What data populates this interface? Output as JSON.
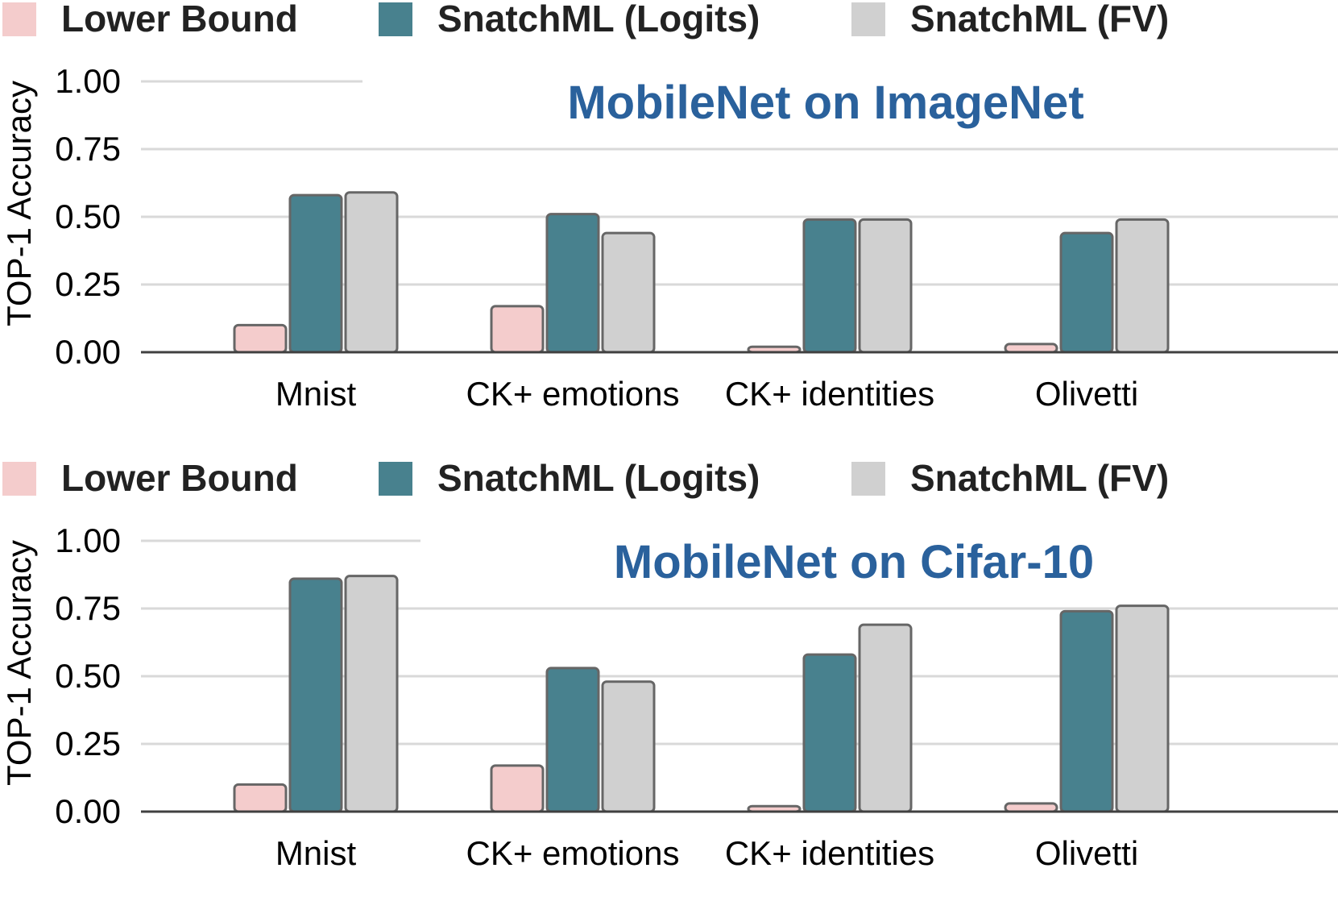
{
  "chart_data": [
    {
      "type": "bar",
      "title": "MobileNet on ImageNet",
      "xlabel": "",
      "ylabel": "TOP-1 Accuracy",
      "ylim": [
        0,
        1
      ],
      "yticks": [
        "0.00",
        "0.25",
        "0.50",
        "0.75",
        "1.00"
      ],
      "grid": true,
      "legend_position": "top",
      "categories": [
        "Mnist",
        "CK+ emotions",
        "CK+ identities",
        "Olivetti"
      ],
      "series": [
        {
          "name": "Lower Bound",
          "color": "#f4cccc",
          "values": [
            0.1,
            0.17,
            0.02,
            0.03
          ]
        },
        {
          "name": "SnatchML (Logits)",
          "color": "#48818e",
          "values": [
            0.58,
            0.51,
            0.49,
            0.44
          ]
        },
        {
          "name": "SnatchML (FV)",
          "color": "#d0d0d0",
          "values": [
            0.59,
            0.44,
            0.49,
            0.49
          ]
        }
      ]
    },
    {
      "type": "bar",
      "title": "MobileNet on Cifar-10",
      "xlabel": "",
      "ylabel": "TOP-1 Accuracy",
      "ylim": [
        0,
        1
      ],
      "yticks": [
        "0.00",
        "0.25",
        "0.50",
        "0.75",
        "1.00"
      ],
      "grid": true,
      "legend_position": "top",
      "categories": [
        "Mnist",
        "CK+ emotions",
        "CK+ identities",
        "Olivetti"
      ],
      "series": [
        {
          "name": "Lower Bound",
          "color": "#f4cccc",
          "values": [
            0.1,
            0.17,
            0.02,
            0.03
          ]
        },
        {
          "name": "SnatchML (Logits)",
          "color": "#48818e",
          "values": [
            0.86,
            0.53,
            0.58,
            0.74
          ]
        },
        {
          "name": "SnatchML (FV)",
          "color": "#d0d0d0",
          "values": [
            0.87,
            0.48,
            0.69,
            0.76
          ]
        }
      ]
    }
  ],
  "colors": {
    "title": "#2a619c",
    "grid": "#d9d9d9",
    "axis": "#404040",
    "bar_stroke": "#666666",
    "text": "#000000",
    "legend_text": "#222222"
  }
}
